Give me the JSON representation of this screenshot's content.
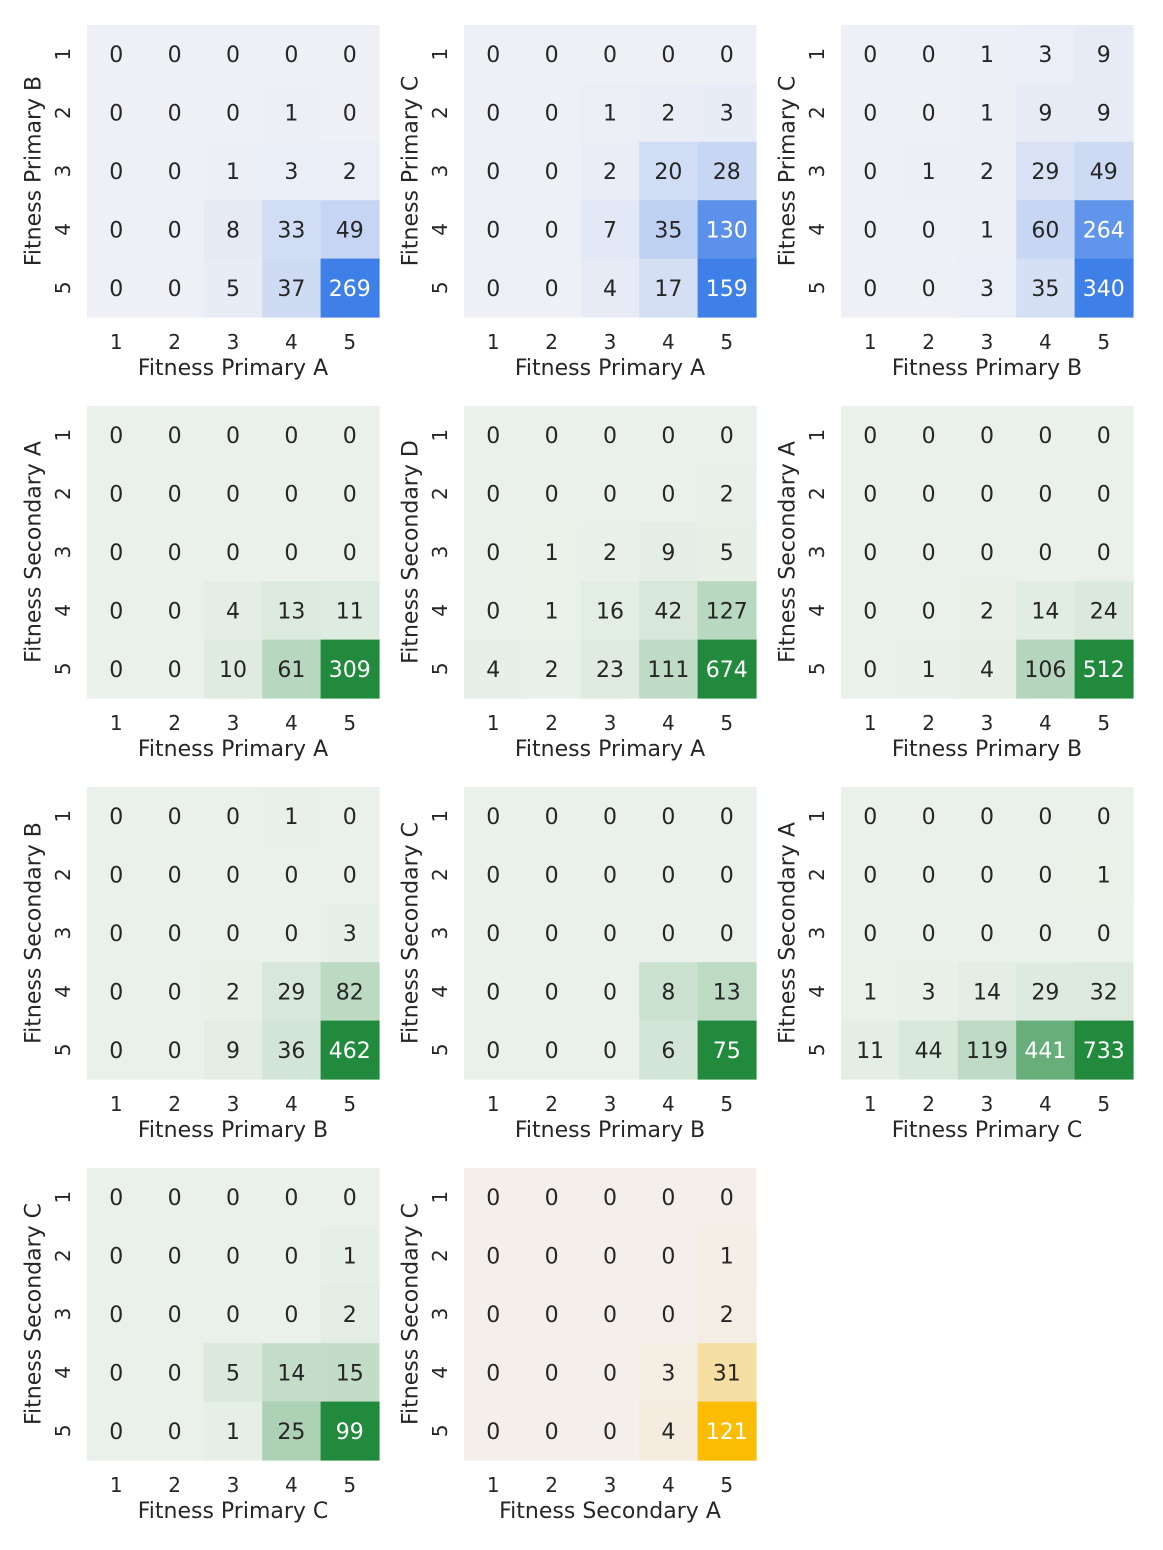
{
  "colors": {
    "blue": "#3f7fe8",
    "green": "#218a3d",
    "yellow": "#fbbc04",
    "base": "#ffffff"
  },
  "chart_data": [
    {
      "type": "heatmap",
      "xlabel": "Fitness Primary A",
      "ylabel": "Fitness Primary B",
      "x_ticks": [
        "1",
        "2",
        "3",
        "4",
        "5"
      ],
      "y_ticks": [
        "1",
        "2",
        "3",
        "4",
        "5"
      ],
      "color": "blue",
      "values": [
        [
          0,
          0,
          0,
          0,
          0
        ],
        [
          0,
          0,
          0,
          1,
          0
        ],
        [
          0,
          0,
          1,
          3,
          2
        ],
        [
          0,
          0,
          8,
          33,
          49
        ],
        [
          0,
          0,
          5,
          37,
          269
        ]
      ]
    },
    {
      "type": "heatmap",
      "xlabel": "Fitness Primary A",
      "ylabel": "Fitness Primary C",
      "x_ticks": [
        "1",
        "2",
        "3",
        "4",
        "5"
      ],
      "y_ticks": [
        "1",
        "2",
        "3",
        "4",
        "5"
      ],
      "color": "blue",
      "values": [
        [
          0,
          0,
          0,
          0,
          0
        ],
        [
          0,
          0,
          1,
          2,
          3
        ],
        [
          0,
          0,
          2,
          20,
          28
        ],
        [
          0,
          0,
          7,
          35,
          130
        ],
        [
          0,
          0,
          4,
          17,
          159
        ]
      ]
    },
    {
      "type": "heatmap",
      "xlabel": "Fitness Primary B",
      "ylabel": "Fitness Primary C",
      "x_ticks": [
        "1",
        "2",
        "3",
        "4",
        "5"
      ],
      "y_ticks": [
        "1",
        "2",
        "3",
        "4",
        "5"
      ],
      "color": "blue",
      "values": [
        [
          0,
          0,
          1,
          3,
          9
        ],
        [
          0,
          0,
          1,
          9,
          9
        ],
        [
          0,
          1,
          2,
          29,
          49
        ],
        [
          0,
          0,
          1,
          60,
          264
        ],
        [
          0,
          0,
          3,
          35,
          340
        ]
      ]
    },
    {
      "type": "heatmap",
      "xlabel": "Fitness Primary A",
      "ylabel": "Fitness Secondary A",
      "x_ticks": [
        "1",
        "2",
        "3",
        "4",
        "5"
      ],
      "y_ticks": [
        "1",
        "2",
        "3",
        "4",
        "5"
      ],
      "color": "green",
      "values": [
        [
          0,
          0,
          0,
          0,
          0
        ],
        [
          0,
          0,
          0,
          0,
          0
        ],
        [
          0,
          0,
          0,
          0,
          0
        ],
        [
          0,
          0,
          4,
          13,
          11
        ],
        [
          0,
          0,
          10,
          61,
          309
        ]
      ]
    },
    {
      "type": "heatmap",
      "xlabel": "Fitness Primary A",
      "ylabel": "Fitness Secondary D",
      "x_ticks": [
        "1",
        "2",
        "3",
        "4",
        "5"
      ],
      "y_ticks": [
        "1",
        "2",
        "3",
        "4",
        "5"
      ],
      "color": "green",
      "values": [
        [
          0,
          0,
          0,
          0,
          0
        ],
        [
          0,
          0,
          0,
          0,
          2
        ],
        [
          0,
          1,
          2,
          9,
          5
        ],
        [
          0,
          1,
          16,
          42,
          127
        ],
        [
          4,
          2,
          23,
          111,
          674
        ]
      ]
    },
    {
      "type": "heatmap",
      "xlabel": "Fitness Primary B",
      "ylabel": "Fitness Secondary A",
      "x_ticks": [
        "1",
        "2",
        "3",
        "4",
        "5"
      ],
      "y_ticks": [
        "1",
        "2",
        "3",
        "4",
        "5"
      ],
      "color": "green",
      "values": [
        [
          0,
          0,
          0,
          0,
          0
        ],
        [
          0,
          0,
          0,
          0,
          0
        ],
        [
          0,
          0,
          0,
          0,
          0
        ],
        [
          0,
          0,
          2,
          14,
          24
        ],
        [
          0,
          1,
          4,
          106,
          512
        ]
      ]
    },
    {
      "type": "heatmap",
      "xlabel": "Fitness Primary B",
      "ylabel": "Fitness Secondary B",
      "x_ticks": [
        "1",
        "2",
        "3",
        "4",
        "5"
      ],
      "y_ticks": [
        "1",
        "2",
        "3",
        "4",
        "5"
      ],
      "color": "green",
      "values": [
        [
          0,
          0,
          0,
          1,
          0
        ],
        [
          0,
          0,
          0,
          0,
          0
        ],
        [
          0,
          0,
          0,
          0,
          3
        ],
        [
          0,
          0,
          2,
          29,
          82
        ],
        [
          0,
          0,
          9,
          36,
          462
        ]
      ]
    },
    {
      "type": "heatmap",
      "xlabel": "Fitness Primary B",
      "ylabel": "Fitness Secondary C",
      "x_ticks": [
        "1",
        "2",
        "3",
        "4",
        "5"
      ],
      "y_ticks": [
        "1",
        "2",
        "3",
        "4",
        "5"
      ],
      "color": "green",
      "values": [
        [
          0,
          0,
          0,
          0,
          0
        ],
        [
          0,
          0,
          0,
          0,
          0
        ],
        [
          0,
          0,
          0,
          0,
          0
        ],
        [
          0,
          0,
          0,
          8,
          13
        ],
        [
          0,
          0,
          0,
          6,
          75
        ]
      ]
    },
    {
      "type": "heatmap",
      "xlabel": "Fitness Primary C",
      "ylabel": "Fitness Secondary A",
      "x_ticks": [
        "1",
        "2",
        "3",
        "4",
        "5"
      ],
      "y_ticks": [
        "1",
        "2",
        "3",
        "4",
        "5"
      ],
      "color": "green",
      "values": [
        [
          0,
          0,
          0,
          0,
          0
        ],
        [
          0,
          0,
          0,
          0,
          1
        ],
        [
          0,
          0,
          0,
          0,
          0
        ],
        [
          1,
          3,
          14,
          29,
          32
        ],
        [
          11,
          44,
          119,
          441,
          733
        ]
      ]
    },
    {
      "type": "heatmap",
      "xlabel": "Fitness Primary C",
      "ylabel": "Fitness Secondary C",
      "x_ticks": [
        "1",
        "2",
        "3",
        "4",
        "5"
      ],
      "y_ticks": [
        "1",
        "2",
        "3",
        "4",
        "5"
      ],
      "color": "green",
      "values": [
        [
          0,
          0,
          0,
          0,
          0
        ],
        [
          0,
          0,
          0,
          0,
          1
        ],
        [
          0,
          0,
          0,
          0,
          2
        ],
        [
          0,
          0,
          5,
          14,
          15
        ],
        [
          0,
          0,
          1,
          25,
          99
        ]
      ]
    },
    {
      "type": "heatmap",
      "xlabel": "Fitness Secondary A",
      "ylabel": "Fitness Secondary C",
      "x_ticks": [
        "1",
        "2",
        "3",
        "4",
        "5"
      ],
      "y_ticks": [
        "1",
        "2",
        "3",
        "4",
        "5"
      ],
      "color": "yellow",
      "values": [
        [
          0,
          0,
          0,
          0,
          0
        ],
        [
          0,
          0,
          0,
          0,
          1
        ],
        [
          0,
          0,
          0,
          0,
          2
        ],
        [
          0,
          0,
          0,
          3,
          31
        ],
        [
          0,
          0,
          0,
          4,
          121
        ]
      ]
    }
  ]
}
